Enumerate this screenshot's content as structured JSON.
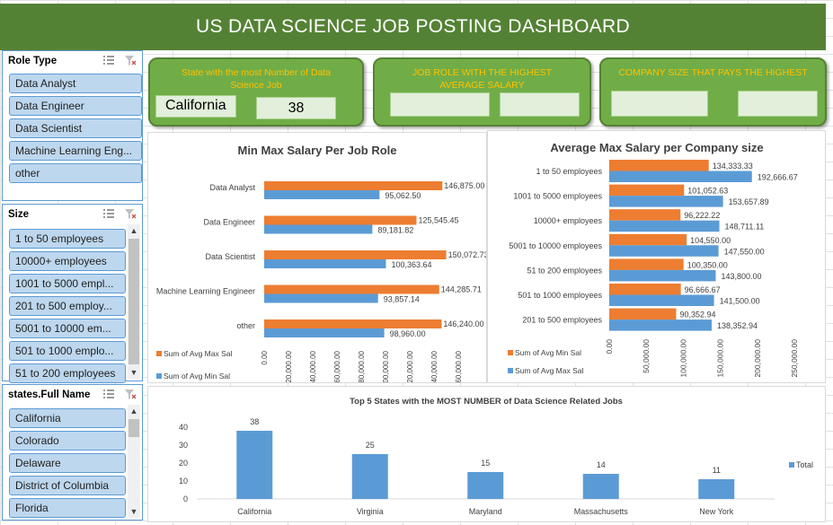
{
  "header": {
    "title": "US DATA SCIENCE JOB POSTING  DASHBOARD"
  },
  "slicers": {
    "role_type": {
      "title": "Role Type",
      "items": [
        "Data Analyst",
        "Data Engineer",
        "Data Scientist",
        "Machine Learning Eng...",
        "other"
      ]
    },
    "size": {
      "title": "Size",
      "items": [
        "1 to 50 employees",
        "10000+ employees",
        "1001 to 5000 empl...",
        "201 to 500 employ...",
        "5001 to 10000 em...",
        "501 to 1000 emplo...",
        "51 to 200 employees"
      ]
    },
    "states": {
      "title": "states.Full Name",
      "items": [
        "California",
        "Colorado",
        "Delaware",
        "District of Columbia",
        "Florida"
      ]
    }
  },
  "kpis": {
    "top_state": {
      "title": "State with the most Number of Data Science Job",
      "state": "California",
      "count": "38"
    },
    "top_role": {
      "title": "JOB ROLE WITH THE HIGHEST AVERAGE SALARY",
      "value1": "",
      "value2": ""
    },
    "top_company_size": {
      "title": "COMPANY SIZE THAT PAYS THE HIGHEST",
      "value1": "",
      "value2": ""
    }
  },
  "colors": {
    "max_series": "#ed7d31",
    "min_series": "#5b9bd5",
    "banner": "#548235",
    "card": "#70ad47",
    "card_title": "#ffc000"
  },
  "chart_data": [
    {
      "type": "bar",
      "orientation": "horizontal",
      "title": "Min Max Salary Per Job Role",
      "categories": [
        "Data Analyst",
        "Data Engineer",
        "Data Scientist",
        "Machine Learning Engineer",
        "other"
      ],
      "series": [
        {
          "name": "Sum of Avg Max Sal",
          "values": [
            146875.0,
            125545.45,
            150072.73,
            144285.71,
            146240.0
          ],
          "labels": [
            "146,875.00",
            "125,545.45",
            "150,072.73",
            "144,285.71",
            "146,240.00"
          ]
        },
        {
          "name": "Sum of Avg Min Sal",
          "values": [
            95062.5,
            89181.82,
            100363.64,
            93857.14,
            98960.0
          ],
          "labels": [
            "95,062.50",
            "89,181.82",
            "100,363.64",
            "93,857.14",
            "98,960.00"
          ]
        }
      ],
      "xlim": [
        0,
        160000
      ],
      "x_ticks": [
        "0.00",
        "20,000.00",
        "40,000.00",
        "60,000.00",
        "80,000.00",
        "100,000.00",
        "120,000.00",
        "140,000.00",
        "160,000.00"
      ],
      "legend": "bottom-left"
    },
    {
      "type": "bar",
      "orientation": "horizontal",
      "title": "Average Max Salary per Company size",
      "categories": [
        "1 to 50 employees",
        "1001 to 5000 employees",
        "10000+ employees",
        "5001 to 10000 employees",
        "51 to 200 employees",
        "501 to 1000 employees",
        "201 to 500 employees"
      ],
      "series": [
        {
          "name": "Sum of Avg Min Sal",
          "values": [
            134333.33,
            101052.63,
            96222.22,
            104550.0,
            100350.0,
            96666.67,
            90352.94
          ],
          "labels": [
            "134,333.33",
            "101,052.63",
            "96,222.22",
            "104,550.00",
            "100,350.00",
            "96,666.67",
            "90,352.94"
          ]
        },
        {
          "name": "Sum of Avg Max Sal",
          "values": [
            192666.67,
            153657.89,
            148711.11,
            147550.0,
            143800.0,
            141500.0,
            138352.94
          ],
          "labels": [
            "192,666.67",
            "153,657.89",
            "148,711.11",
            "147,550.00",
            "143,800.00",
            "141,500.00",
            "138,352.94"
          ]
        }
      ],
      "xlim": [
        0,
        250000
      ],
      "x_ticks": [
        "0.00",
        "50,000.00",
        "100,000.00",
        "150,000.00",
        "200,000.00",
        "250,000.00"
      ],
      "legend": "bottom-left"
    },
    {
      "type": "bar",
      "title": "Top 5 States with the MOST NUMBER of Data Science Related Jobs",
      "categories": [
        "California",
        "Virginia",
        "Maryland",
        "Massachusetts",
        "New York"
      ],
      "series": [
        {
          "name": "Total",
          "values": [
            38,
            25,
            15,
            14,
            11
          ]
        }
      ],
      "ylim": [
        0,
        40
      ],
      "y_ticks": [
        "0",
        "10",
        "20",
        "30",
        "40"
      ],
      "legend": "right"
    }
  ]
}
